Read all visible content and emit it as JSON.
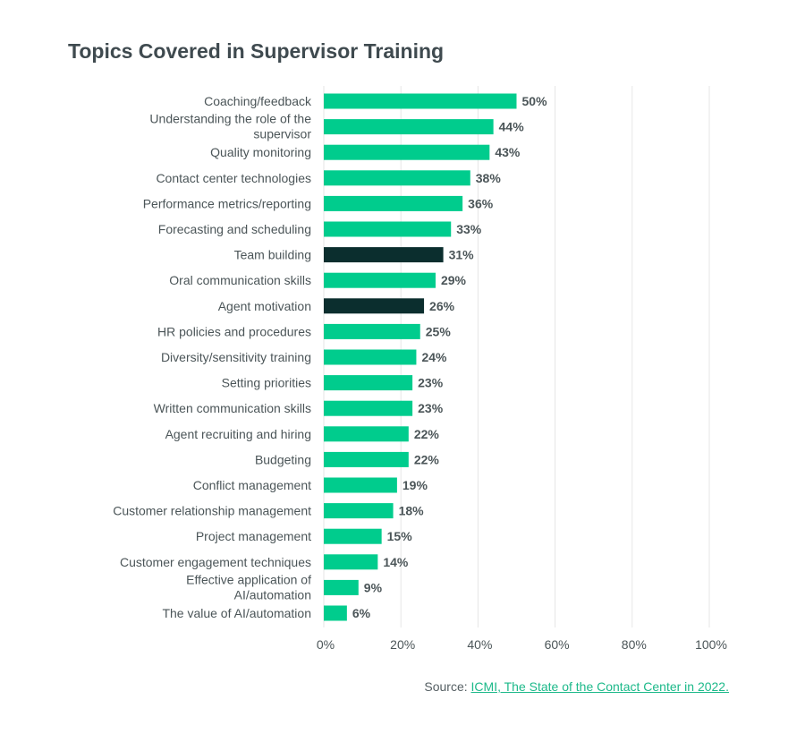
{
  "chart_data": {
    "type": "bar",
    "orientation": "horizontal",
    "title": "Topics Covered in Supervisor Training",
    "categories": [
      "Coaching/feedback",
      "Understanding the role of the supervisor",
      "Quality monitoring",
      "Contact center technologies",
      "Performance metrics/reporting",
      "Forecasting and scheduling",
      "Team building",
      "Oral communication skills",
      "Agent motivation",
      "HR policies and procedures",
      "Diversity/sensitivity training",
      "Setting priorities",
      "Written communication skills",
      "Agent recruiting and hiring",
      "Budgeting",
      "Conflict management",
      "Customer relationship management",
      "Project management",
      "Customer engagement techniques",
      "Effective application of AI/automation",
      "The value of AI/automation"
    ],
    "values": [
      50,
      44,
      43,
      38,
      36,
      33,
      31,
      29,
      26,
      25,
      24,
      23,
      23,
      22,
      22,
      19,
      18,
      15,
      14,
      9,
      6
    ],
    "data_labels": [
      "50%",
      "44%",
      "43%",
      "38%",
      "36%",
      "33%",
      "31%",
      "29%",
      "26%",
      "25%",
      "24%",
      "23%",
      "23%",
      "22%",
      "22%",
      "19%",
      "18%",
      "15%",
      "14%",
      "9%",
      "6%"
    ],
    "highlighted": [
      "Team building",
      "Agent motivation"
    ],
    "xlim": [
      0,
      100
    ],
    "xticks": [
      0,
      20,
      40,
      60,
      80,
      100
    ],
    "xtick_labels": [
      "0%",
      "20%",
      "40%",
      "60%",
      "80%",
      "100%"
    ],
    "grid": "vertical",
    "colors": {
      "bar": "#00cc8d",
      "highlight": "#0b2e2e",
      "label": "#4b5558",
      "value": "#4b5558",
      "grid": "#e6e6e6"
    }
  },
  "source": {
    "prefix": "Source: ",
    "link_text": "ICMI, The State of the Contact Center in 2022."
  }
}
